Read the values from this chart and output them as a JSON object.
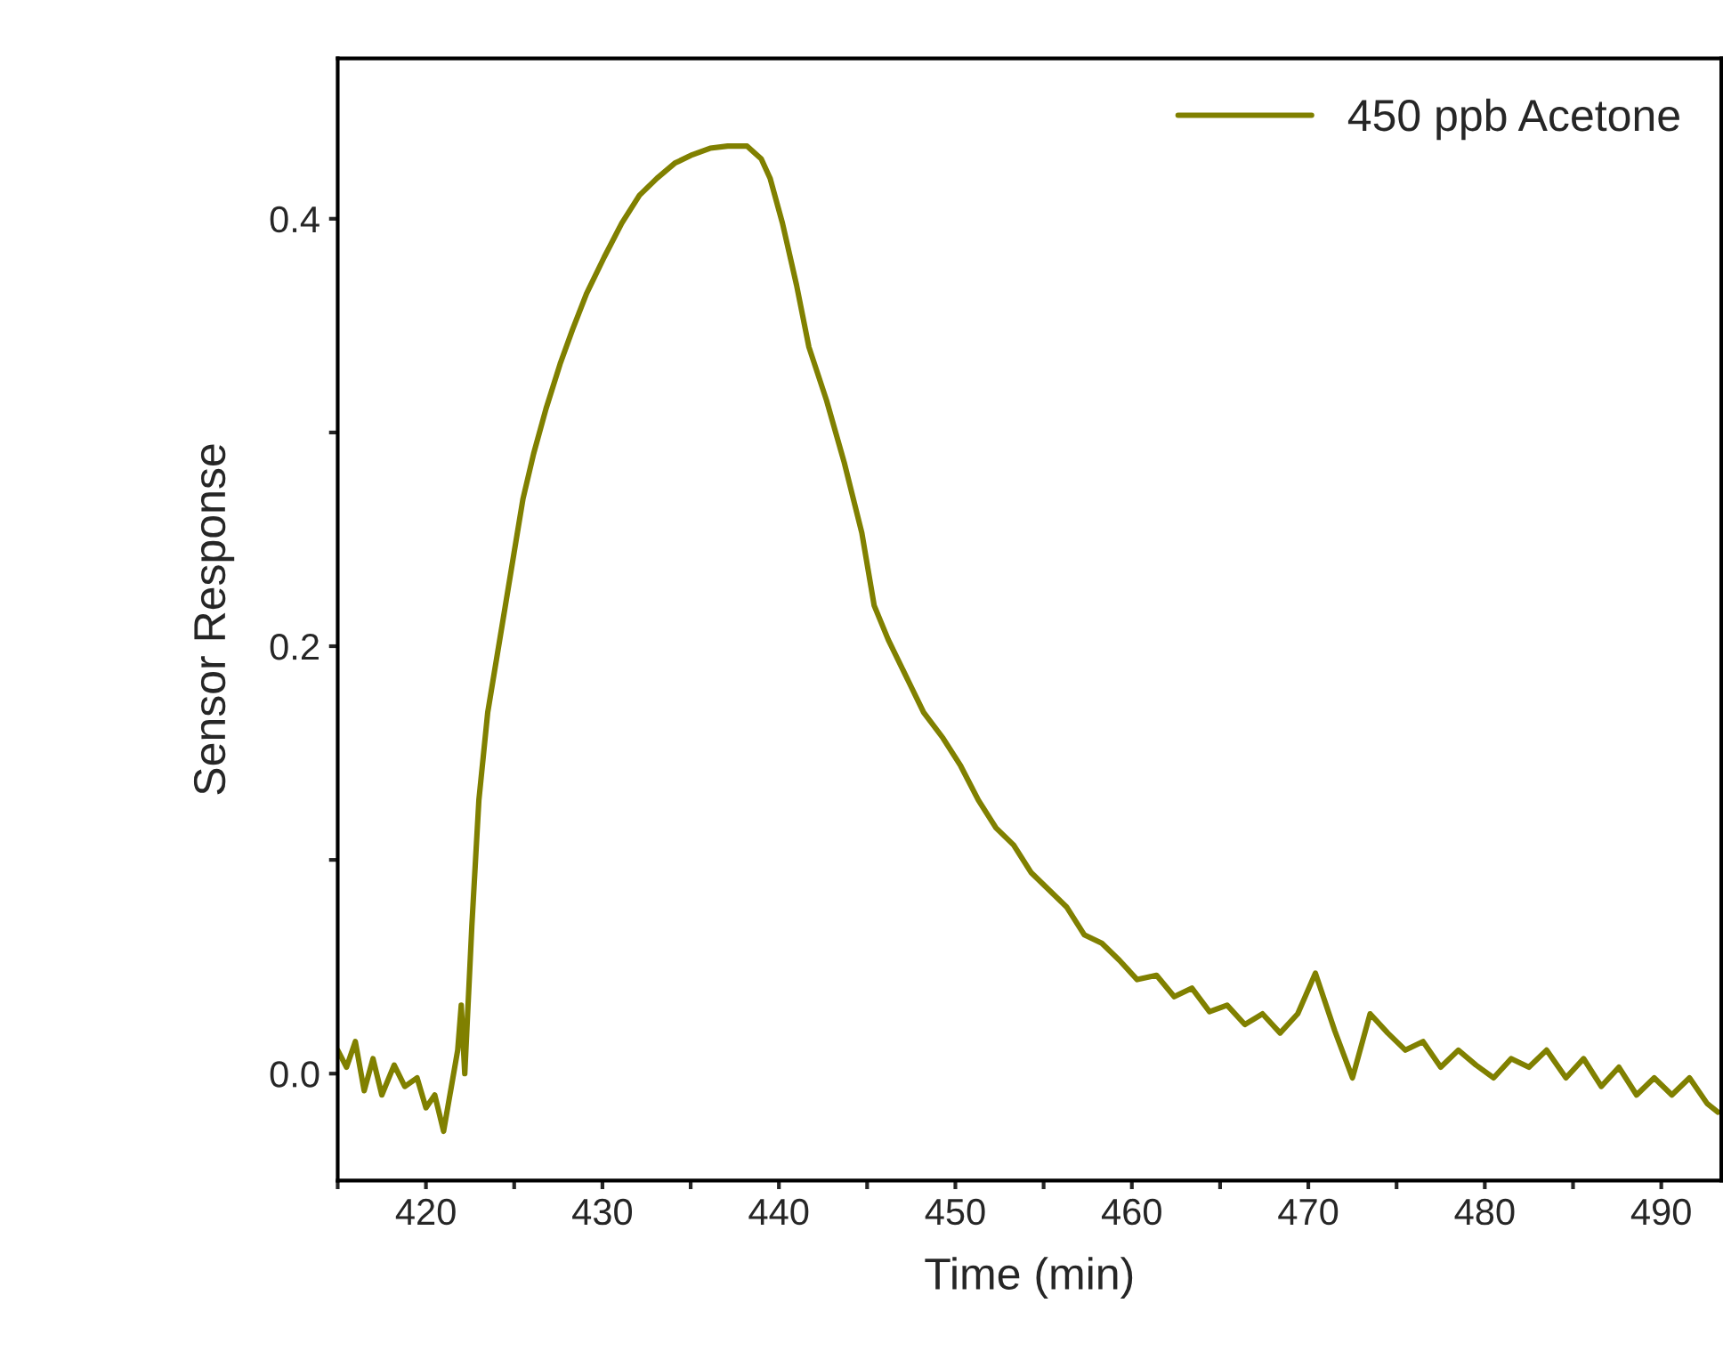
{
  "chart_data": {
    "type": "line",
    "xlabel": "Time (min)",
    "ylabel": "Sensor Response",
    "xlim": [
      415,
      493.4
    ],
    "ylim": [
      -0.05,
      0.475
    ],
    "xticks": [
      {
        "value": 415,
        "label": null
      },
      420,
      {
        "value": 425,
        "label": null
      },
      430,
      {
        "value": 435,
        "label": null
      },
      440,
      {
        "value": 445,
        "label": null
      },
      450,
      {
        "value": 455,
        "label": null
      },
      460,
      {
        "value": 465,
        "label": null
      },
      470,
      {
        "value": 475,
        "label": null
      },
      480,
      {
        "value": 485,
        "label": null
      },
      490
    ],
    "yticks": [
      {
        "value": 0.0,
        "label": "0.0"
      },
      {
        "value": 0.1,
        "label": null
      },
      {
        "value": 0.2,
        "label": "0.2"
      },
      {
        "value": 0.3,
        "label": null
      },
      {
        "value": 0.4,
        "label": "0.4"
      }
    ],
    "grid": false,
    "legend": "top right",
    "marker": "none",
    "line_style": "solid",
    "series": [
      {
        "name": "450 ppb Acetone",
        "color": "#808000",
        "x": [
          415,
          415.5,
          416,
          416.5,
          417,
          417.5,
          418.2,
          418.8,
          419.5,
          420,
          420.5,
          421,
          421.3,
          421.6,
          421.8,
          422.0,
          422.2,
          422.6,
          423.0,
          423.5,
          424.0,
          424.5,
          425.0,
          425.5,
          426.1,
          426.8,
          427.6,
          428.3,
          429.1,
          430.1,
          431.1,
          432.1,
          433.1,
          434.1,
          435.1,
          436.1,
          437.1,
          438.2,
          439.0,
          439.5,
          440.2,
          441.0,
          441.7,
          442.7,
          443.7,
          444.7,
          445.4,
          446.2,
          447.2,
          448.2,
          449.3,
          450.3,
          451.3,
          452.3,
          453.3,
          454.3,
          455.3,
          456.3,
          457.3,
          458.3,
          459.3,
          460.3,
          461.4,
          462.4,
          463.4,
          464.4,
          465.4,
          466.4,
          467.4,
          468.4,
          469.4,
          470.4,
          471.5,
          472.5,
          473.5,
          474.5,
          475.5,
          476.5,
          477.5,
          478.5,
          479.5,
          480.5,
          481.5,
          482.5,
          483.5,
          484.6,
          485.6,
          486.6,
          487.6,
          488.6,
          489.6,
          490.6,
          491.6,
          492.6,
          493.2
        ],
        "values": [
          0.011,
          0.003,
          0.015,
          -0.008,
          0.007,
          -0.01,
          0.004,
          -0.006,
          -0.002,
          -0.016,
          -0.01,
          -0.027,
          null,
          null,
          0.011,
          0.032,
          0.0,
          0.069,
          0.128,
          0.169,
          0.194,
          0.219,
          0.244,
          0.269,
          0.29,
          0.311,
          0.332,
          0.348,
          0.365,
          0.382,
          0.398,
          0.411,
          0.419,
          0.426,
          0.43,
          0.433,
          0.434,
          0.434,
          0.428,
          0.419,
          0.398,
          0.369,
          0.34,
          0.315,
          0.286,
          0.253,
          0.219,
          0.203,
          0.186,
          0.169,
          0.157,
          0.144,
          0.128,
          0.115,
          0.107,
          0.094,
          0.086,
          0.078,
          0.065,
          0.061,
          0.053,
          0.044,
          0.046,
          0.036,
          0.04,
          0.029,
          0.032,
          0.023,
          0.028,
          0.019,
          0.028,
          0.047,
          0.02,
          -0.002,
          0.028,
          0.019,
          0.011,
          0.015,
          0.003,
          0.011,
          0.004,
          -0.002,
          0.007,
          0.003,
          0.011,
          -0.002,
          0.007,
          -0.006,
          0.003,
          -0.01,
          -0.002,
          -0.01,
          -0.002,
          -0.014,
          -0.018
        ]
      }
    ]
  }
}
